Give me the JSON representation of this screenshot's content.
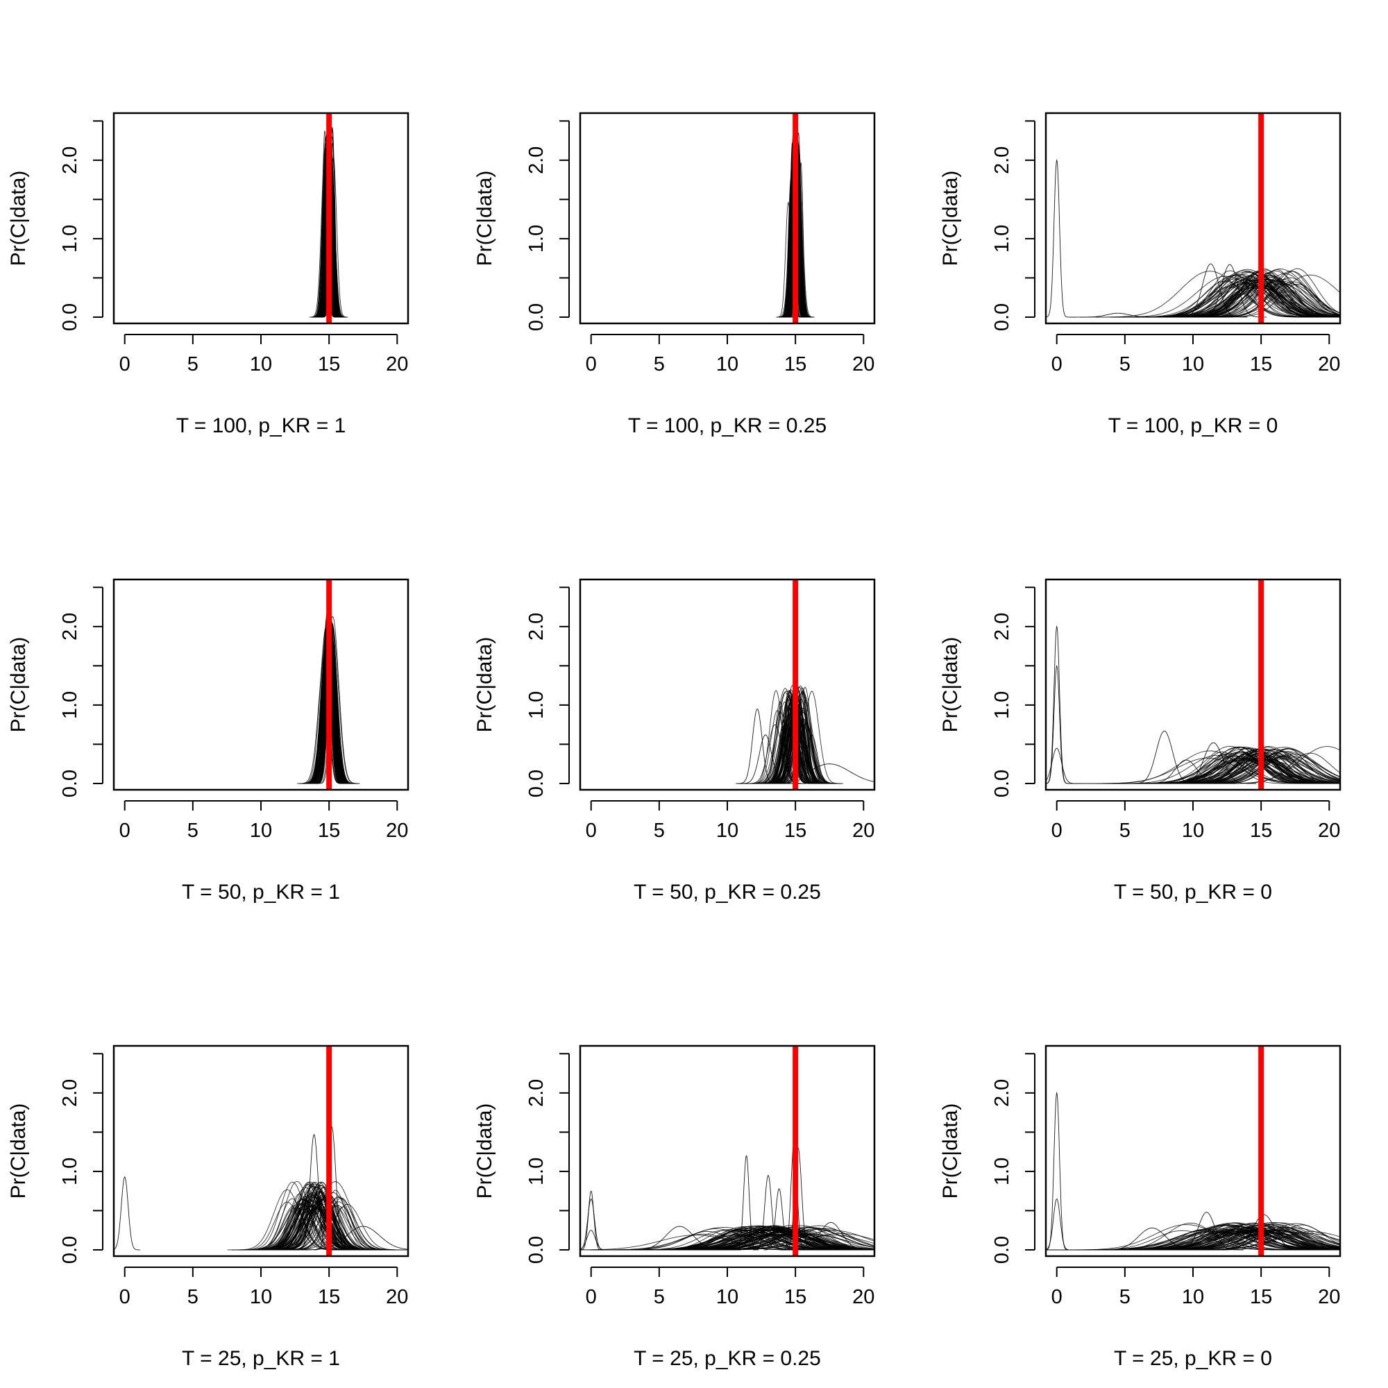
{
  "chart_data": [
    {
      "type": "line",
      "xlabel": "T = 100, p_KR = 1",
      "ylabel": "Pr(C|data)",
      "xlim": [
        -0.8,
        20.8
      ],
      "ylim": [
        -0.08,
        2.6
      ],
      "xticks": [
        0,
        5,
        10,
        15,
        20
      ],
      "yticks": [
        0.0,
        0.5,
        1.0,
        1.5,
        2.0,
        2.5
      ],
      "ytick_labels": [
        "0.0",
        "1.0",
        "2.0"
      ],
      "reference_line": {
        "x": 15,
        "color": "#ff0000"
      },
      "curve_color": "#000000",
      "n_curves": 100,
      "mode_center": 15.0,
      "mode_sd": 0.15,
      "peak_height": 1.95,
      "peak_sd": 0.2,
      "outliers": []
    },
    {
      "type": "line",
      "xlabel": "T = 100, p_KR = 0.25",
      "ylabel": "Pr(C|data)",
      "xlim": [
        -0.8,
        20.8
      ],
      "ylim": [
        -0.08,
        2.6
      ],
      "xticks": [
        0,
        5,
        10,
        15,
        20
      ],
      "yticks": [
        0.0,
        0.5,
        1.0,
        1.5,
        2.0,
        2.5
      ],
      "ytick_labels": [
        "0.0",
        "1.0",
        "2.0"
      ],
      "reference_line": {
        "x": 15,
        "color": "#ff0000"
      },
      "curve_color": "#000000",
      "n_curves": 100,
      "mode_center": 15.0,
      "mode_sd": 0.15,
      "peak_height": 1.9,
      "peak_sd": 0.2,
      "outliers": []
    },
    {
      "type": "line",
      "xlabel": "T = 100, p_KR = 0",
      "ylabel": "Pr(C|data)",
      "xlim": [
        -0.8,
        20.8
      ],
      "ylim": [
        -0.08,
        2.6
      ],
      "xticks": [
        0,
        5,
        10,
        15,
        20
      ],
      "yticks": [
        0.0,
        0.5,
        1.0,
        1.5,
        2.0,
        2.5
      ],
      "ytick_labels": [
        "0.0",
        "1.0",
        "2.0"
      ],
      "reference_line": {
        "x": 15,
        "color": "#ff0000"
      },
      "curve_color": "#000000",
      "n_curves": 80,
      "mode_center": 15.0,
      "mode_sd": 1.3,
      "peak_height": 0.5,
      "peak_sd": 1.7,
      "outliers": [
        {
          "x": 0.0,
          "h": 2.0,
          "sd": 0.2
        },
        {
          "x": 11.3,
          "h": 0.68,
          "sd": 0.6
        },
        {
          "x": 12.7,
          "h": 0.67,
          "sd": 0.6
        },
        {
          "x": 4.5,
          "h": 0.05,
          "sd": 0.8
        }
      ]
    },
    {
      "type": "line",
      "xlabel": "T = 50, p_KR = 1",
      "ylabel": "Pr(C|data)",
      "xlim": [
        -0.8,
        20.8
      ],
      "ylim": [
        -0.08,
        2.6
      ],
      "xticks": [
        0,
        5,
        10,
        15,
        20
      ],
      "yticks": [
        0.0,
        0.5,
        1.0,
        1.5,
        2.0,
        2.5
      ],
      "ytick_labels": [
        "0.0",
        "1.0",
        "2.0"
      ],
      "reference_line": {
        "x": 15,
        "color": "#ff0000"
      },
      "curve_color": "#000000",
      "n_curves": 100,
      "mode_center": 15.0,
      "mode_sd": 0.15,
      "peak_height": 1.8,
      "peak_sd": 0.35,
      "outliers": []
    },
    {
      "type": "line",
      "xlabel": "T = 50, p_KR = 0.25",
      "ylabel": "Pr(C|data)",
      "xlim": [
        -0.8,
        20.8
      ],
      "ylim": [
        -0.08,
        2.6
      ],
      "xticks": [
        0,
        5,
        10,
        15,
        20
      ],
      "yticks": [
        0.0,
        0.5,
        1.0,
        1.5,
        2.0,
        2.5
      ],
      "ytick_labels": [
        "0.0",
        "1.0",
        "2.0"
      ],
      "reference_line": {
        "x": 15,
        "color": "#ff0000"
      },
      "curve_color": "#000000",
      "n_curves": 90,
      "mode_center": 15.0,
      "mode_sd": 0.5,
      "peak_height": 1.0,
      "peak_sd": 0.5,
      "outliers": [
        {
          "x": 12.2,
          "h": 0.95,
          "sd": 0.35
        },
        {
          "x": 12.8,
          "h": 0.62,
          "sd": 0.45
        },
        {
          "x": 13.5,
          "h": 0.75,
          "sd": 0.5
        },
        {
          "x": 16.2,
          "h": 0.62,
          "sd": 0.4
        },
        {
          "x": 17.5,
          "h": 0.25,
          "sd": 1.5
        }
      ]
    },
    {
      "type": "line",
      "xlabel": "T = 50, p_KR = 0",
      "ylabel": "Pr(C|data)",
      "xlim": [
        -0.8,
        20.8
      ],
      "ylim": [
        -0.08,
        2.6
      ],
      "xticks": [
        0,
        5,
        10,
        15,
        20
      ],
      "yticks": [
        0.0,
        0.5,
        1.0,
        1.5,
        2.0,
        2.5
      ],
      "ytick_labels": [
        "0.0",
        "1.0",
        "2.0"
      ],
      "reference_line": {
        "x": 15,
        "color": "#ff0000"
      },
      "curve_color": "#000000",
      "n_curves": 80,
      "mode_center": 14.8,
      "mode_sd": 1.6,
      "peak_height": 0.38,
      "peak_sd": 1.8,
      "outliers": [
        {
          "x": 0.0,
          "h": 2.0,
          "sd": 0.2
        },
        {
          "x": 0.0,
          "h": 1.5,
          "sd": 0.2
        },
        {
          "x": 0.0,
          "h": 0.45,
          "sd": 0.35
        },
        {
          "x": 7.9,
          "h": 0.67,
          "sd": 0.6
        },
        {
          "x": 9.5,
          "h": 0.3,
          "sd": 0.8
        },
        {
          "x": 11.5,
          "h": 0.52,
          "sd": 0.7
        }
      ]
    },
    {
      "type": "line",
      "xlabel": "T = 25, p_KR = 1",
      "ylabel": "Pr(C|data)",
      "xlim": [
        -0.8,
        20.8
      ],
      "ylim": [
        -0.08,
        2.6
      ],
      "xticks": [
        0,
        5,
        10,
        15,
        20
      ],
      "yticks": [
        0.0,
        0.5,
        1.0,
        1.5,
        2.0,
        2.5
      ],
      "ytick_labels": [
        "0.0",
        "1.0",
        "2.0"
      ],
      "reference_line": {
        "x": 15,
        "color": "#ff0000"
      },
      "curve_color": "#000000",
      "n_curves": 90,
      "mode_center": 14.0,
      "mode_sd": 1.0,
      "peak_height": 0.7,
      "peak_sd": 0.9,
      "outliers": [
        {
          "x": 0.0,
          "h": 0.93,
          "sd": 0.25
        },
        {
          "x": 13.9,
          "h": 1.47,
          "sd": 0.3
        },
        {
          "x": 15.2,
          "h": 1.57,
          "sd": 0.3
        },
        {
          "x": 17.5,
          "h": 0.3,
          "sd": 1.2
        }
      ]
    },
    {
      "type": "line",
      "xlabel": "T = 25, p_KR = 0.25",
      "ylabel": "Pr(C|data)",
      "xlim": [
        -0.8,
        20.8
      ],
      "ylim": [
        -0.08,
        2.6
      ],
      "xticks": [
        0,
        5,
        10,
        15,
        20
      ],
      "yticks": [
        0.0,
        0.5,
        1.0,
        1.5,
        2.0,
        2.5
      ],
      "ytick_labels": [
        "0.0",
        "1.0",
        "2.0"
      ],
      "reference_line": {
        "x": 15,
        "color": "#ff0000"
      },
      "curve_color": "#000000",
      "n_curves": 90,
      "mode_center": 13.5,
      "mode_sd": 2.0,
      "peak_height": 0.25,
      "peak_sd": 2.0,
      "outliers": [
        {
          "x": 0.0,
          "h": 0.75,
          "sd": 0.2
        },
        {
          "x": 0.0,
          "h": 0.65,
          "sd": 0.25
        },
        {
          "x": 0.0,
          "h": 0.25,
          "sd": 0.3
        },
        {
          "x": 6.5,
          "h": 0.3,
          "sd": 1.0
        },
        {
          "x": 11.4,
          "h": 1.2,
          "sd": 0.2
        },
        {
          "x": 13.0,
          "h": 0.95,
          "sd": 0.25
        },
        {
          "x": 13.8,
          "h": 0.78,
          "sd": 0.25
        },
        {
          "x": 14.9,
          "h": 1.38,
          "sd": 0.22
        },
        {
          "x": 15.2,
          "h": 1.3,
          "sd": 0.25
        },
        {
          "x": 17.6,
          "h": 0.35,
          "sd": 0.8
        }
      ]
    },
    {
      "type": "line",
      "xlabel": "T = 25, p_KR = 0",
      "ylabel": "Pr(C|data)",
      "xlim": [
        -0.8,
        20.8
      ],
      "ylim": [
        -0.08,
        2.6
      ],
      "xticks": [
        0,
        5,
        10,
        15,
        20
      ],
      "yticks": [
        0.0,
        0.5,
        1.0,
        1.5,
        2.0,
        2.5
      ],
      "ytick_labels": [
        "0.0",
        "1.0",
        "2.0"
      ],
      "reference_line": {
        "x": 15,
        "color": "#ff0000"
      },
      "curve_color": "#000000",
      "n_curves": 80,
      "mode_center": 13.5,
      "mode_sd": 2.2,
      "peak_height": 0.28,
      "peak_sd": 2.2,
      "outliers": [
        {
          "x": 0.0,
          "h": 2.0,
          "sd": 0.2
        },
        {
          "x": 0.0,
          "h": 0.65,
          "sd": 0.25
        },
        {
          "x": 7.0,
          "h": 0.28,
          "sd": 1.0
        },
        {
          "x": 11.0,
          "h": 0.48,
          "sd": 0.6
        },
        {
          "x": 15.2,
          "h": 0.45,
          "sd": 0.8
        }
      ]
    }
  ]
}
